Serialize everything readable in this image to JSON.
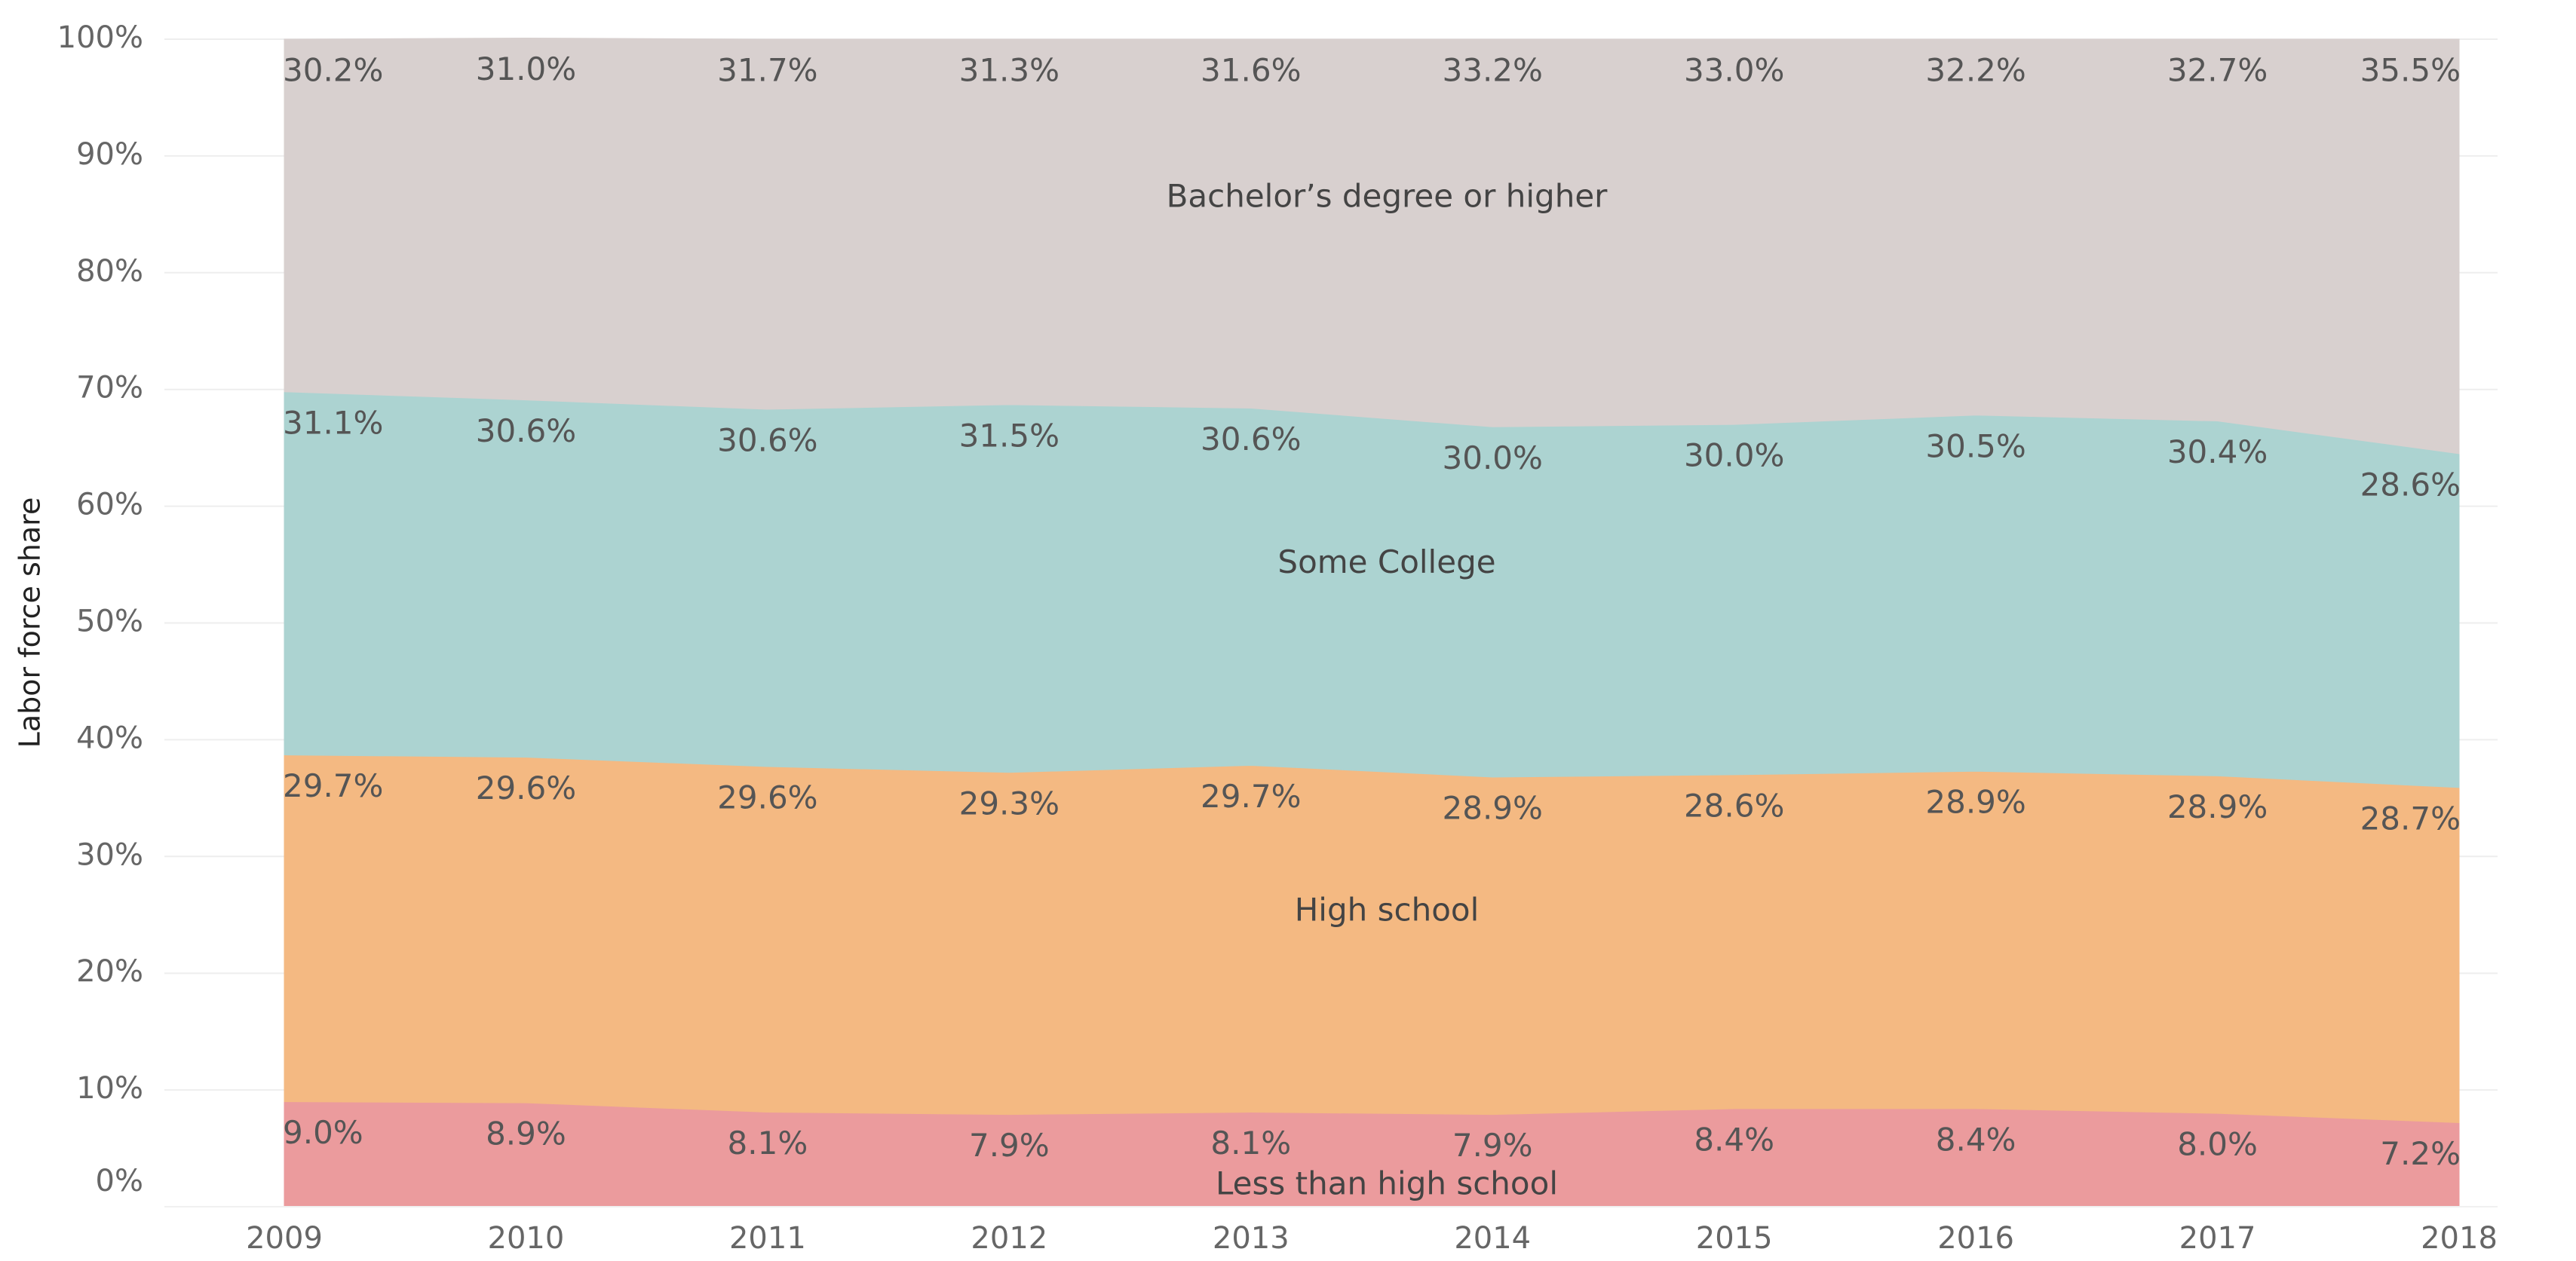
{
  "chart_data": {
    "type": "stacked_area",
    "y_label": "Labor force share",
    "categories": [
      "2009",
      "2010",
      "2011",
      "2012",
      "2013",
      "2014",
      "2015",
      "2016",
      "2017",
      "2018"
    ],
    "series": [
      {
        "name": "Less than high school",
        "color": "#eb9b9d",
        "values": [
          9.0,
          8.9,
          8.1,
          7.9,
          8.1,
          7.9,
          8.4,
          8.4,
          8.0,
          7.2
        ],
        "value_labels": [
          "9.0%",
          "8.9%",
          "8.1%",
          "7.9%",
          "8.1%",
          "7.9%",
          "8.4%",
          "8.4%",
          "8.0%",
          "7.2%"
        ]
      },
      {
        "name": "High school",
        "color": "#f4b982",
        "values": [
          29.7,
          29.6,
          29.6,
          29.3,
          29.7,
          28.9,
          28.6,
          28.9,
          28.9,
          28.7
        ],
        "value_labels": [
          "29.7%",
          "29.6%",
          "29.6%",
          "29.3%",
          "29.7%",
          "28.9%",
          "28.6%",
          "28.9%",
          "28.9%",
          "28.7%"
        ]
      },
      {
        "name": "Some College",
        "color": "#acd3d1",
        "values": [
          31.1,
          30.6,
          30.6,
          31.5,
          30.6,
          30.0,
          30.0,
          30.5,
          30.4,
          28.6
        ],
        "value_labels": [
          "31.1%",
          "30.6%",
          "30.6%",
          "31.5%",
          "30.6%",
          "30.0%",
          "30.0%",
          "30.5%",
          "30.4%",
          "28.6%"
        ]
      },
      {
        "name": "Bachelor’s degree or higher",
        "color": "#d8d0cf",
        "values": [
          30.2,
          31.0,
          31.7,
          31.3,
          31.6,
          33.2,
          33.0,
          32.2,
          32.7,
          35.5
        ],
        "value_labels": [
          "30.2%",
          "31.0%",
          "31.7%",
          "31.3%",
          "31.6%",
          "33.2%",
          "33.0%",
          "32.2%",
          "32.7%",
          "35.5%"
        ]
      }
    ],
    "ylim": [
      0,
      100
    ],
    "yticks": [
      {
        "value": 0,
        "label": "0%"
      },
      {
        "value": 10,
        "label": "10%"
      },
      {
        "value": 20,
        "label": "20%"
      },
      {
        "value": 30,
        "label": "30%"
      },
      {
        "value": 40,
        "label": "40%"
      },
      {
        "value": 50,
        "label": "50%"
      },
      {
        "value": 60,
        "label": "60%"
      },
      {
        "value": 70,
        "label": "70%"
      },
      {
        "value": 80,
        "label": "80%"
      },
      {
        "value": 90,
        "label": "90%"
      },
      {
        "value": 100,
        "label": "100%"
      }
    ],
    "grid": true
  }
}
